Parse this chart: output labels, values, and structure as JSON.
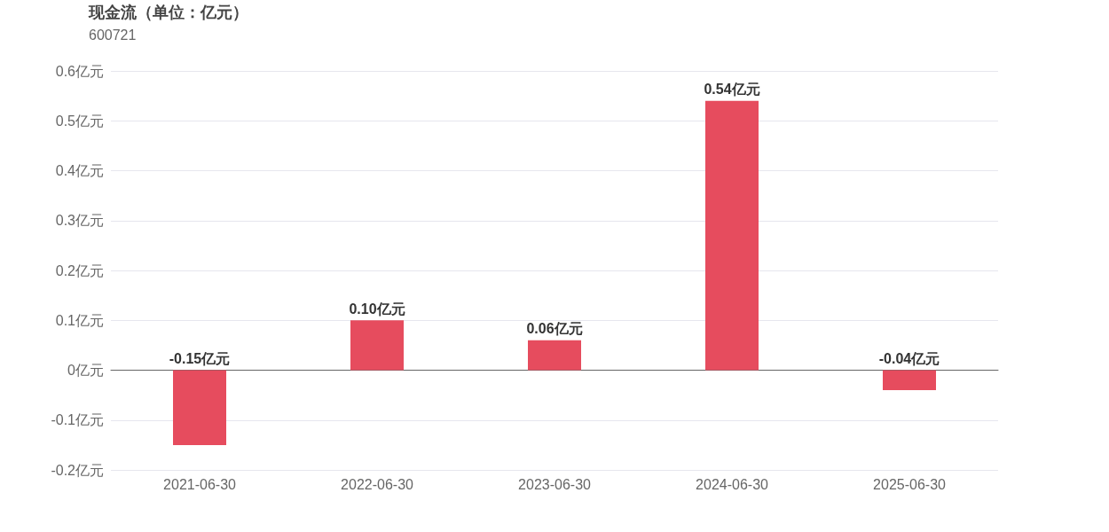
{
  "chart_data": {
    "type": "bar",
    "title": "现金流（单位：亿元）",
    "subtitle": "600721",
    "categories": [
      "2021-06-30",
      "2022-06-30",
      "2023-06-30",
      "2024-06-30",
      "2025-06-30"
    ],
    "values": [
      -0.15,
      0.1,
      0.06,
      0.54,
      -0.04
    ],
    "value_labels": [
      "-0.15亿元",
      "0.10亿元",
      "0.06亿元",
      "0.54亿元",
      "-0.04亿元"
    ],
    "color": "#e64c5e",
    "ylim": [
      -0.2,
      0.6
    ],
    "yticks": [
      {
        "value": -0.2,
        "label": "-0.2亿元"
      },
      {
        "value": -0.1,
        "label": "-0.1亿元"
      },
      {
        "value": 0,
        "label": "0亿元"
      },
      {
        "value": 0.1,
        "label": "0.1亿元"
      },
      {
        "value": 0.2,
        "label": "0.2亿元"
      },
      {
        "value": 0.3,
        "label": "0.3亿元"
      },
      {
        "value": 0.4,
        "label": "0.4亿元"
      },
      {
        "value": 0.5,
        "label": "0.5亿元"
      },
      {
        "value": 0.6,
        "label": "0.6亿元"
      }
    ],
    "grid": "y"
  }
}
